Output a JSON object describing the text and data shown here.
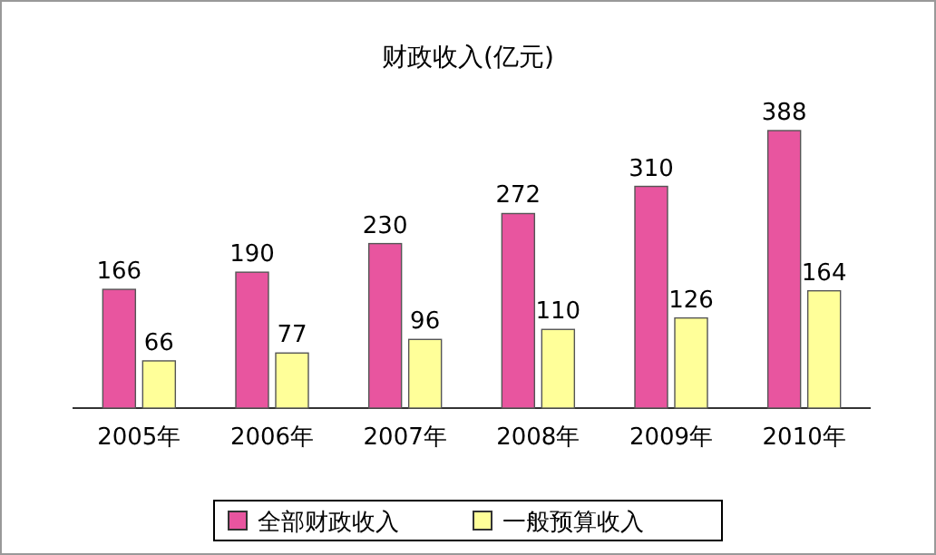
{
  "chart_data": {
    "type": "bar",
    "title": "财政收入(亿元)",
    "categories": [
      "2005年",
      "2006年",
      "2007年",
      "2008年",
      "2009年",
      "2010年"
    ],
    "series": [
      {
        "name": "全部财政收入",
        "color": "#e8559f",
        "values": [
          166,
          190,
          230,
          272,
          310,
          388
        ]
      },
      {
        "name": "一般预算收入",
        "color": "#ffff99",
        "values": [
          66,
          77,
          96,
          110,
          126,
          164
        ]
      }
    ],
    "data_labels": true,
    "legend": "bottom"
  }
}
